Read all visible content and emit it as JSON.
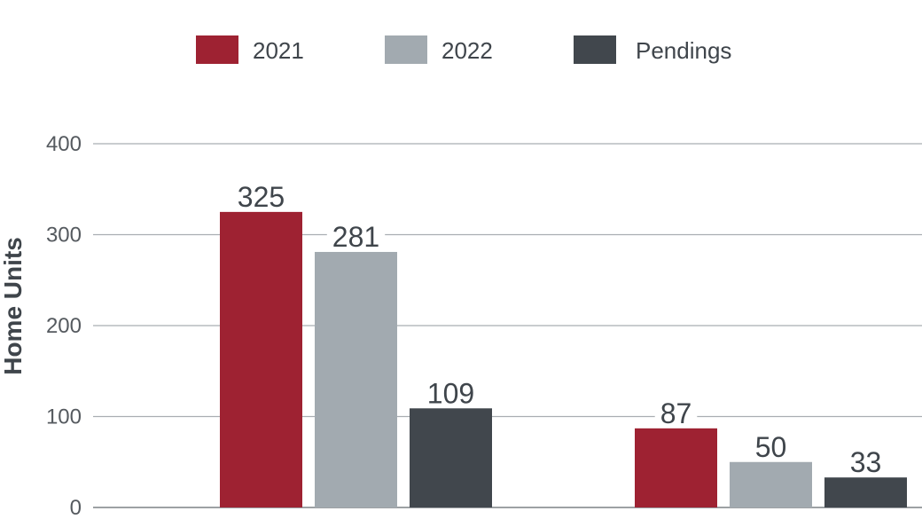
{
  "chart_data": {
    "type": "bar",
    "categories": [
      "",
      ""
    ],
    "series": [
      {
        "name": "2021",
        "values": [
          325,
          87
        ],
        "color": "#9e2232"
      },
      {
        "name": "2022",
        "values": [
          281,
          50
        ],
        "color": "#a2aab0"
      },
      {
        "name": "Pendings",
        "values": [
          109,
          33
        ],
        "color": "#41474d"
      }
    ],
    "xlabel": "",
    "ylabel": "Home Units",
    "ylim": [
      0,
      400
    ],
    "yticks": [
      0,
      100,
      200,
      300,
      400
    ],
    "grid": true,
    "legend_position": "top"
  }
}
